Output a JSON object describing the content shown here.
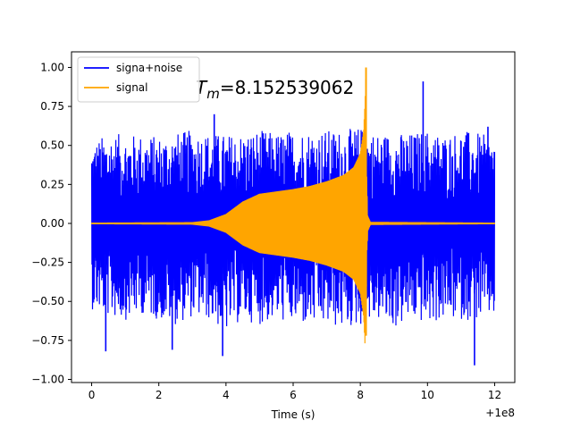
{
  "chart_data": {
    "type": "line",
    "title": "",
    "xlabel": "Time (s)",
    "ylabel": "",
    "x_offset_label": "+1e8",
    "xlim": [
      -0.6,
      12.6
    ],
    "ylim": [
      -1.02,
      1.1
    ],
    "x_ticks": [
      {
        "value": 0,
        "label": "0"
      },
      {
        "value": 2,
        "label": "2"
      },
      {
        "value": 4,
        "label": "4"
      },
      {
        "value": 6,
        "label": "6"
      },
      {
        "value": 8,
        "label": "8"
      },
      {
        "value": 10,
        "label": "10"
      },
      {
        "value": 12,
        "label": "12"
      }
    ],
    "y_ticks": [
      {
        "value": -1.0,
        "label": "−1.00"
      },
      {
        "value": -0.75,
        "label": "−0.75"
      },
      {
        "value": -0.5,
        "label": "−0.50"
      },
      {
        "value": -0.25,
        "label": "−0.25"
      },
      {
        "value": 0.0,
        "label": "0.00"
      },
      {
        "value": 0.25,
        "label": "0.25"
      },
      {
        "value": 0.5,
        "label": "0.50"
      },
      {
        "value": 0.75,
        "label": "0.75"
      },
      {
        "value": 1.0,
        "label": "1.00"
      }
    ],
    "grid": false,
    "legend_position": "top-left",
    "annotation": {
      "symbol": "T",
      "subscript": "m",
      "text": "=8.152539062",
      "x": 3.1,
      "y": 0.83
    },
    "series": [
      {
        "name": "signa+noise",
        "color": "#0000ff",
        "envelope": [
          {
            "x": 0.0,
            "lo": -0.55,
            "hi": 0.52
          },
          {
            "x": 0.5,
            "lo": -0.6,
            "hi": 0.58
          },
          {
            "x": 1.0,
            "lo": -0.62,
            "hi": 0.57
          },
          {
            "x": 1.5,
            "lo": -0.58,
            "hi": 0.57
          },
          {
            "x": 2.0,
            "lo": -0.62,
            "hi": 0.56
          },
          {
            "x": 2.5,
            "lo": -0.65,
            "hi": 0.58
          },
          {
            "x": 3.0,
            "lo": -0.6,
            "hi": 0.6
          },
          {
            "x": 3.5,
            "lo": -0.62,
            "hi": 0.58
          },
          {
            "x": 4.0,
            "lo": -0.7,
            "hi": 0.57
          },
          {
            "x": 4.5,
            "lo": -0.62,
            "hi": 0.58
          },
          {
            "x": 5.0,
            "lo": -0.65,
            "hi": 0.6
          },
          {
            "x": 5.5,
            "lo": -0.62,
            "hi": 0.58
          },
          {
            "x": 6.0,
            "lo": -0.65,
            "hi": 0.6
          },
          {
            "x": 6.5,
            "lo": -0.66,
            "hi": 0.6
          },
          {
            "x": 7.0,
            "lo": -0.66,
            "hi": 0.6
          },
          {
            "x": 7.5,
            "lo": -0.68,
            "hi": 0.6
          },
          {
            "x": 8.0,
            "lo": -0.66,
            "hi": 0.62
          },
          {
            "x": 8.5,
            "lo": -0.62,
            "hi": 0.58
          },
          {
            "x": 9.0,
            "lo": -0.68,
            "hi": 0.58
          },
          {
            "x": 9.5,
            "lo": -0.62,
            "hi": 0.58
          },
          {
            "x": 10.0,
            "lo": -0.65,
            "hi": 0.6
          },
          {
            "x": 10.5,
            "lo": -0.62,
            "hi": 0.57
          },
          {
            "x": 11.0,
            "lo": -0.62,
            "hi": 0.6
          },
          {
            "x": 11.5,
            "lo": -0.62,
            "hi": 0.58
          },
          {
            "x": 12.0,
            "lo": -0.6,
            "hi": 0.55
          }
        ],
        "spikes": [
          {
            "x": 0.42,
            "y": -0.82
          },
          {
            "x": 2.4,
            "y": -0.81
          },
          {
            "x": 3.65,
            "y": 0.7
          },
          {
            "x": 3.9,
            "y": -0.85
          },
          {
            "x": 9.87,
            "y": 0.91
          },
          {
            "x": 11.4,
            "y": -0.91
          },
          {
            "x": 11.8,
            "y": 0.62
          }
        ]
      },
      {
        "name": "signal",
        "color": "#ffa500",
        "envelope": [
          {
            "x": 0.0,
            "amp": 0.005
          },
          {
            "x": 3.0,
            "amp": 0.008
          },
          {
            "x": 3.5,
            "amp": 0.02
          },
          {
            "x": 4.0,
            "amp": 0.06
          },
          {
            "x": 4.5,
            "amp": 0.14
          },
          {
            "x": 5.0,
            "amp": 0.19
          },
          {
            "x": 5.5,
            "amp": 0.205
          },
          {
            "x": 6.0,
            "amp": 0.22
          },
          {
            "x": 6.5,
            "amp": 0.24
          },
          {
            "x": 7.0,
            "amp": 0.27
          },
          {
            "x": 7.5,
            "amp": 0.31
          },
          {
            "x": 7.8,
            "amp": 0.36
          },
          {
            "x": 8.0,
            "amp": 0.45
          },
          {
            "x": 8.1,
            "amp": 0.6
          },
          {
            "x": 8.14,
            "amp": 0.78
          },
          {
            "x": 8.17,
            "amp": 1.0
          },
          {
            "x": 8.19,
            "amp": 0.3
          },
          {
            "x": 8.22,
            "amp": 0.05
          },
          {
            "x": 8.3,
            "amp": 0.01
          },
          {
            "x": 12.0,
            "amp": 0.005
          }
        ]
      }
    ]
  }
}
